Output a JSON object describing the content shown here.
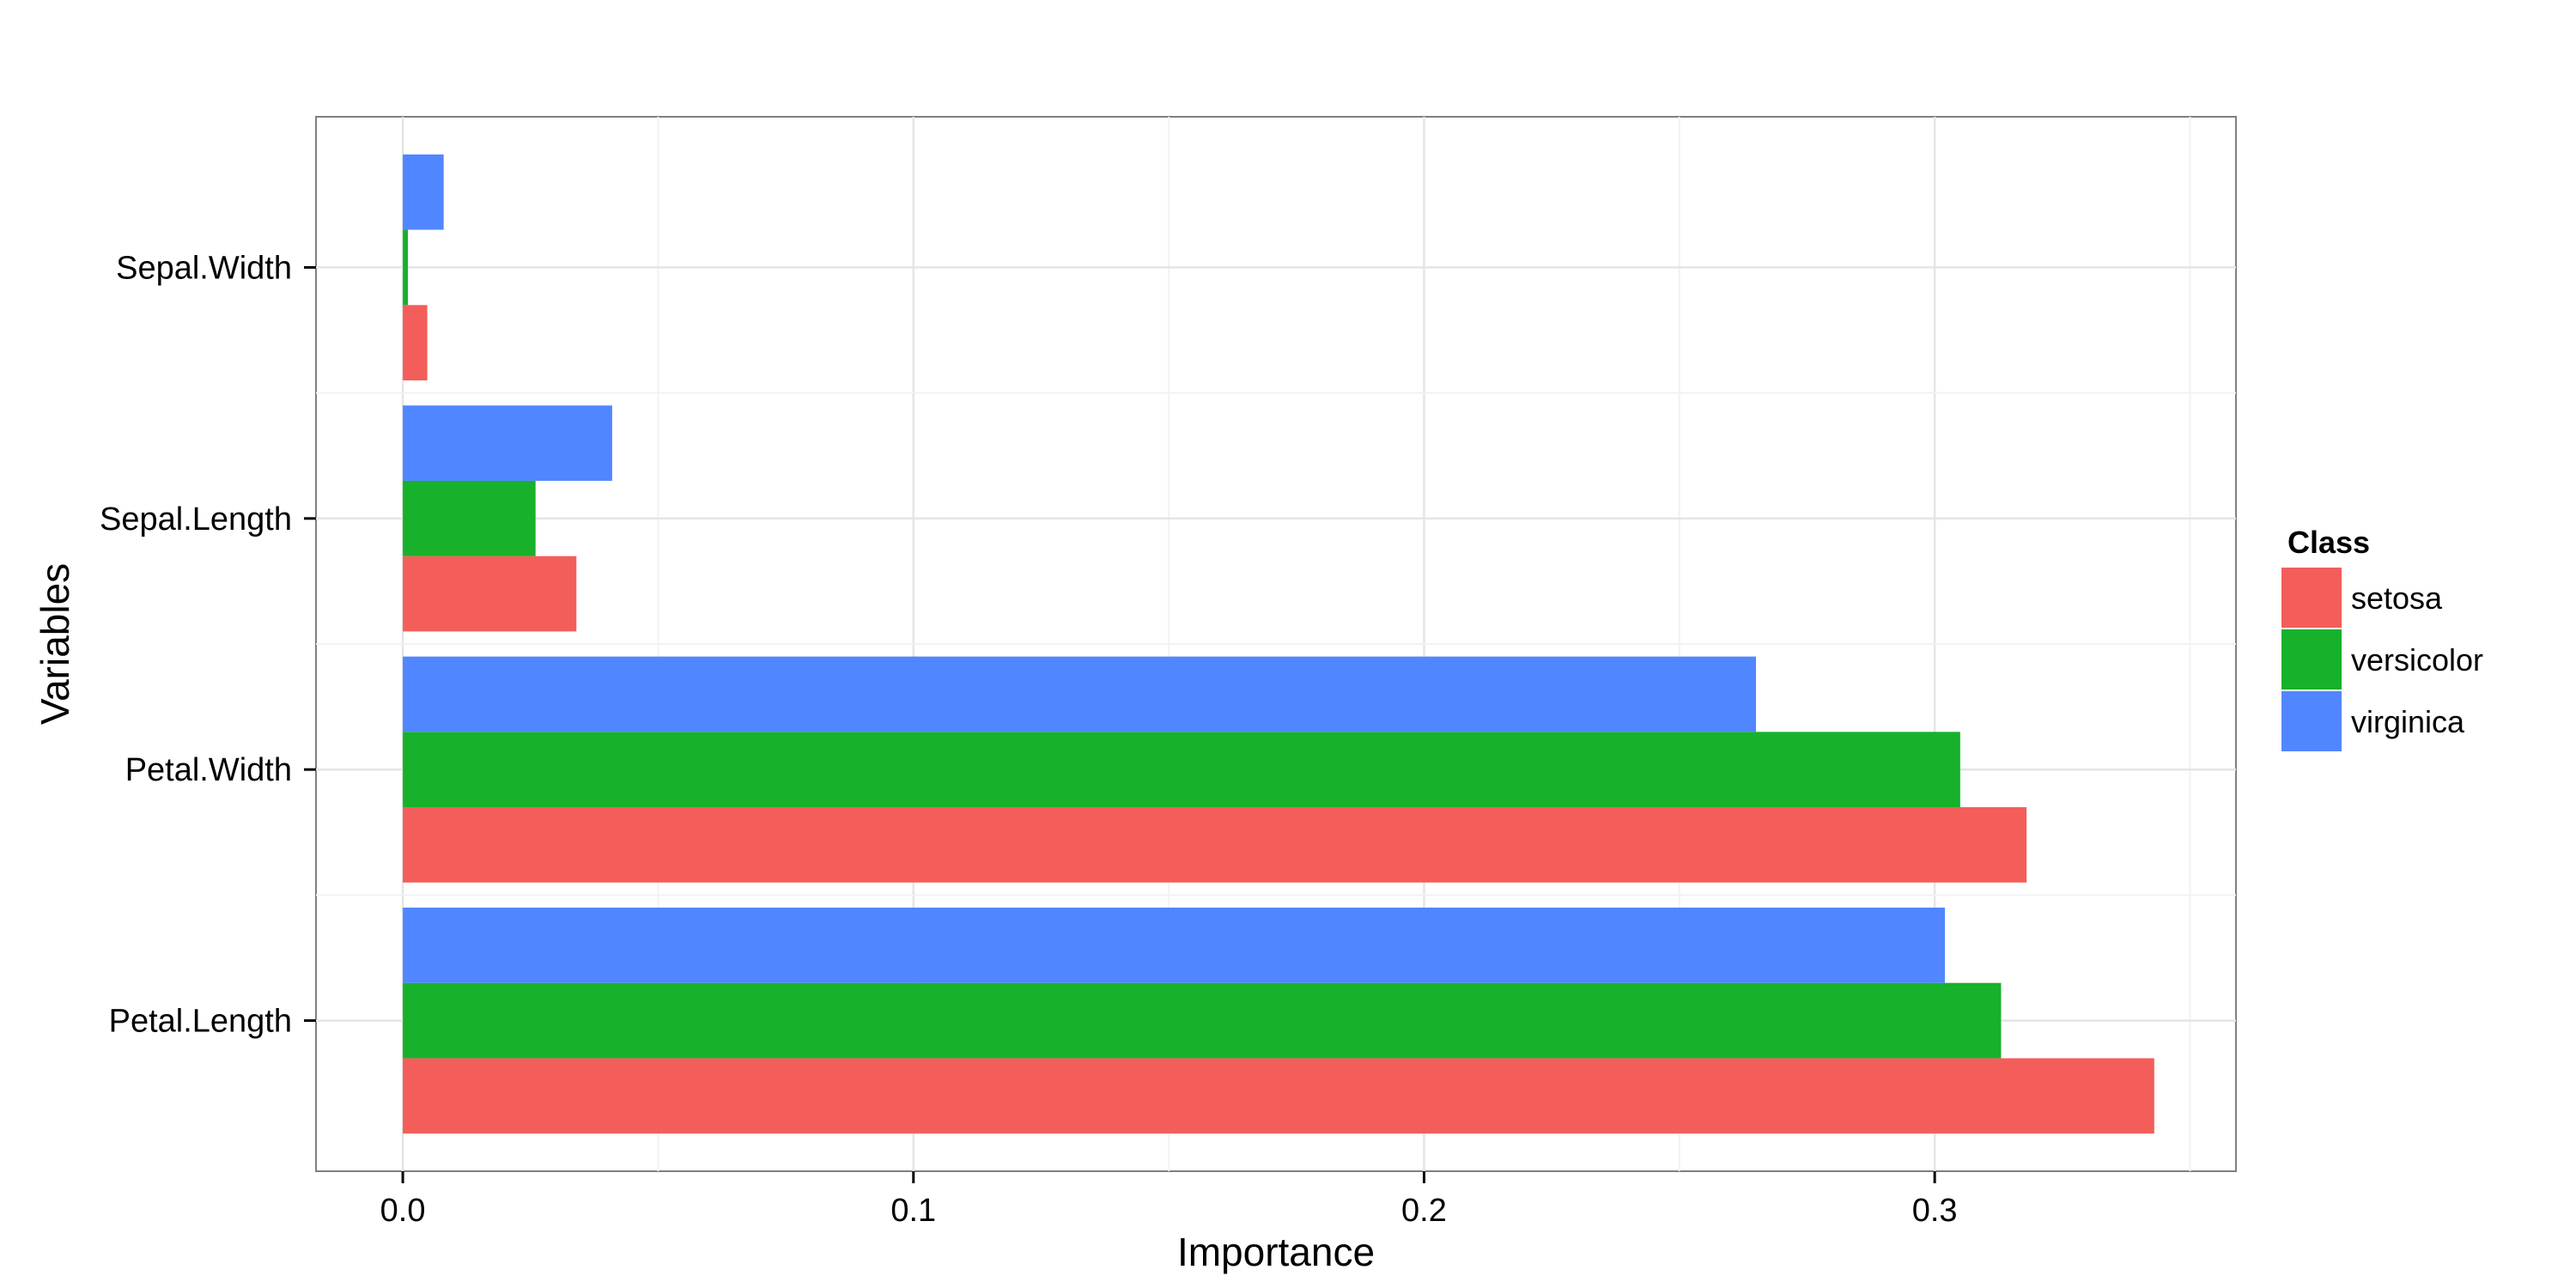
{
  "chart_data": {
    "type": "bar",
    "orientation": "horizontal",
    "xlabel": "Importance",
    "ylabel": "Variables",
    "xlim": [
      -0.017,
      0.359
    ],
    "x_ticks": [
      0.0,
      0.1,
      0.2,
      0.3
    ],
    "x_tick_labels": [
      "0.0",
      "0.1",
      "0.2",
      "0.3"
    ],
    "categories": [
      "Sepal.Width",
      "Sepal.Length",
      "Petal.Width",
      "Petal.Length"
    ],
    "series": [
      {
        "name": "setosa",
        "color": "#F35E5A",
        "values": [
          0.0048,
          0.034,
          0.318,
          0.343
        ]
      },
      {
        "name": "versicolor",
        "color": "#17B12B",
        "values": [
          0.001,
          0.026,
          0.305,
          0.313
        ]
      },
      {
        "name": "virginica",
        "color": "#5086FF",
        "values": [
          0.008,
          0.041,
          0.265,
          0.302
        ]
      }
    ],
    "grid": true,
    "legend": {
      "title": "Class",
      "placement": "right"
    }
  }
}
